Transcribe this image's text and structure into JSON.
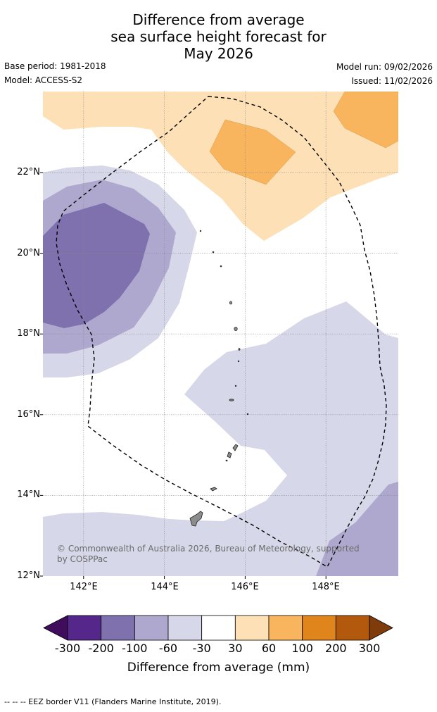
{
  "title": {
    "line1": "Difference from average",
    "line2": "sea surface height forecast for",
    "line3": "May 2026"
  },
  "meta": {
    "base_period": "Base period: 1981-2018",
    "model": "Model: ACCESS-S2",
    "model_run": "Model run: 09/02/2026",
    "issued": "Issued: 11/02/2026"
  },
  "map": {
    "lat_ticks": [
      "22°N",
      "20°N",
      "18°N",
      "16°N",
      "14°N",
      "12°N"
    ],
    "lon_ticks": [
      "142°E",
      "144°E",
      "146°E",
      "148°E"
    ],
    "copyright": "© Commonwealth of Australia 2026, Bureau of Meteorology, supported by COSPPac",
    "features": [
      "eez-border-dashed",
      "island-outlines",
      "contour-fill"
    ]
  },
  "colorbar": {
    "ticks": [
      "-300",
      "-200",
      "-100",
      "-60",
      "-30",
      "30",
      "60",
      "100",
      "200",
      "300"
    ],
    "colors": [
      "#3f0d5c",
      "#56278a",
      "#7f71ad",
      "#aea8cf",
      "#d6d7e8",
      "#ffffff",
      "#fde0b5",
      "#f9b55d",
      "#e0841c",
      "#b3590d",
      "#7f3b09"
    ],
    "title": "Difference from average (mm)"
  },
  "footer": "--  --  -- EEZ border V11 (Flanders Marine Institute, 2019)."
}
